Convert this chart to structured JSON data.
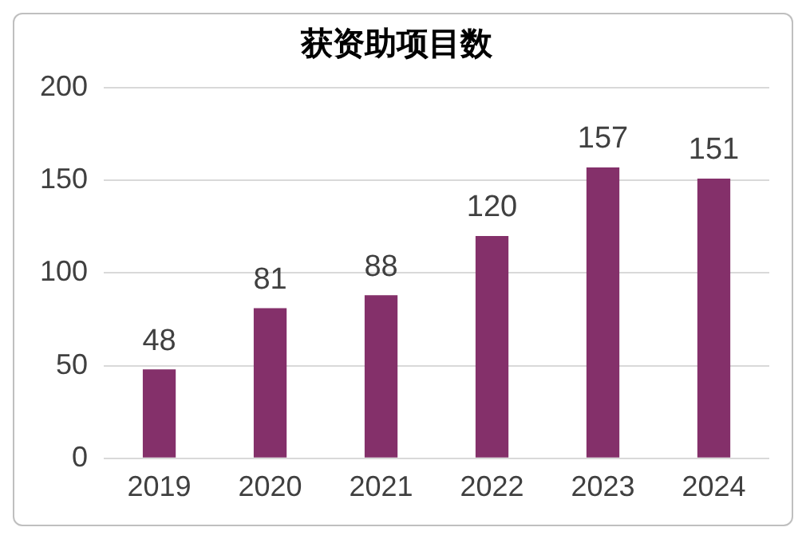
{
  "chart_data": {
    "type": "bar",
    "title": "获资助项目数",
    "categories": [
      "2019",
      "2020",
      "2021",
      "2022",
      "2023",
      "2024"
    ],
    "values": [
      48,
      81,
      88,
      120,
      157,
      151
    ],
    "color": "#84306a",
    "ylim": [
      0,
      200
    ],
    "yticks": [
      0,
      50,
      100,
      150,
      200
    ],
    "grid": "y",
    "data_labels": true,
    "legend": false
  }
}
